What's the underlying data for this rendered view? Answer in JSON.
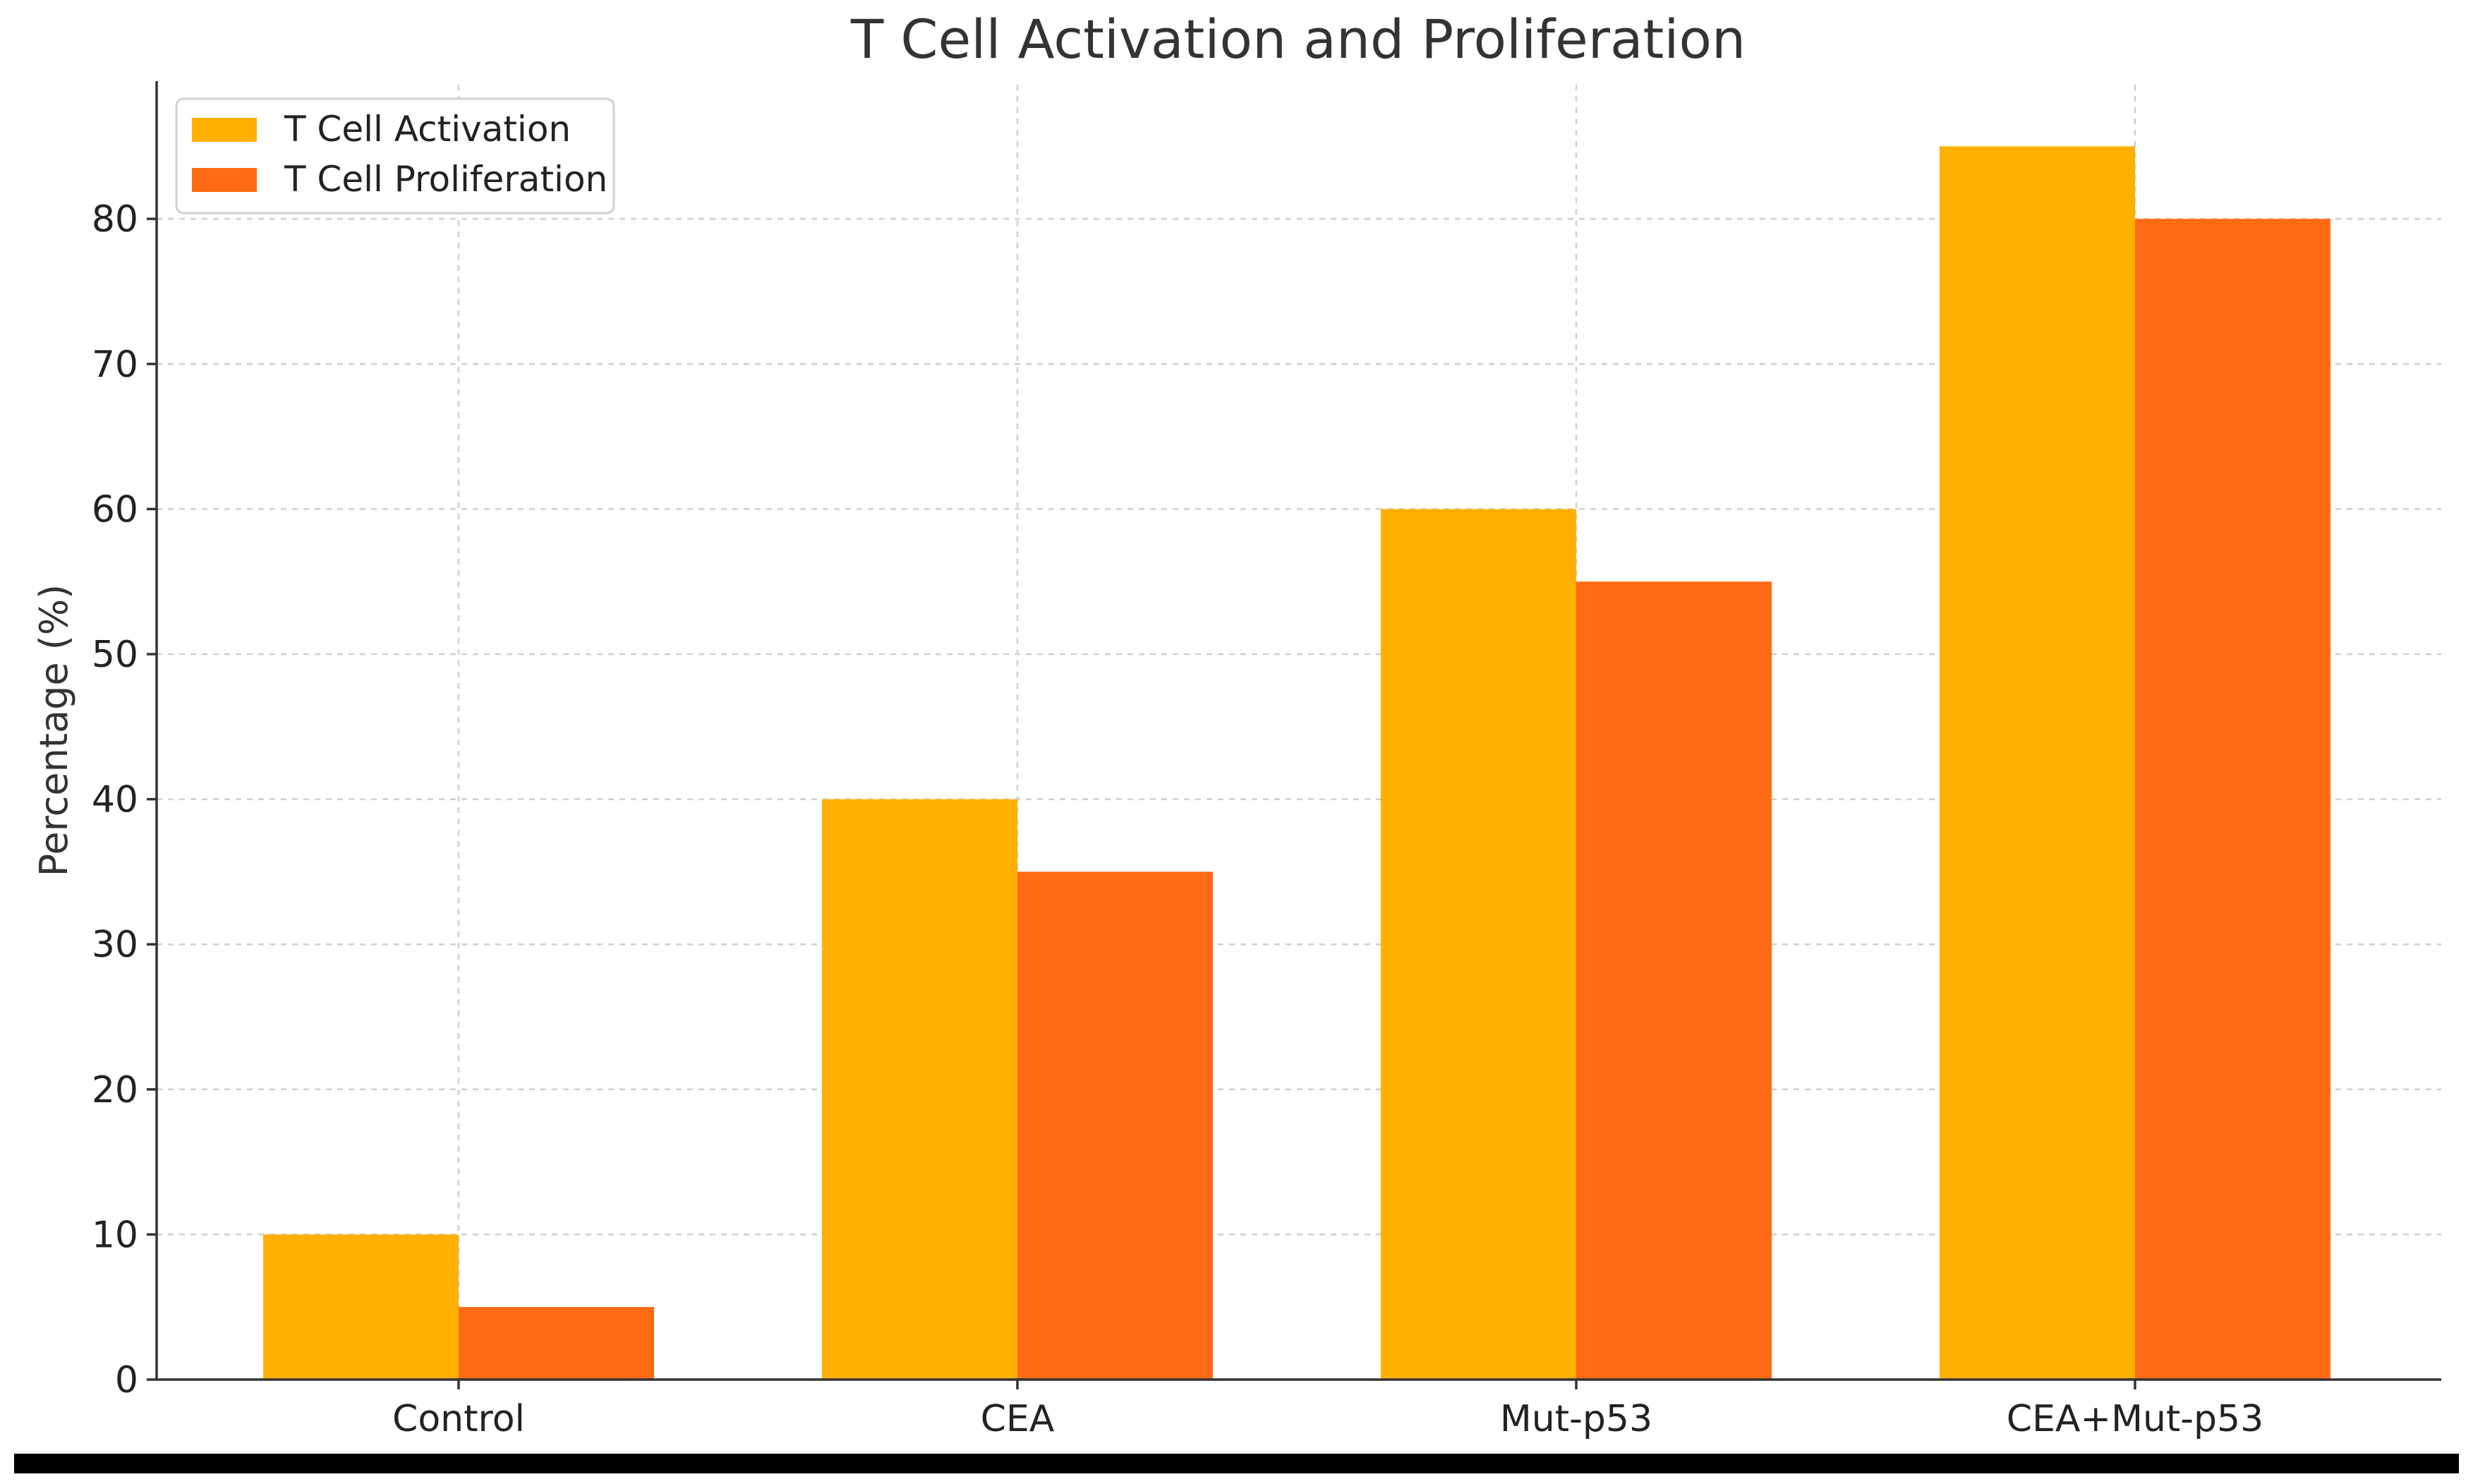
{
  "chart_data": {
    "type": "bar",
    "title": "T Cell Activation and Proliferation",
    "xlabel": "",
    "ylabel": "Percentage (%)",
    "categories": [
      "Control",
      "CEA",
      "Mut-p53",
      "CEA+Mut-p53"
    ],
    "series": [
      {
        "name": "T Cell Activation",
        "values": [
          10,
          40,
          60,
          85
        ],
        "color": "#FFB000"
      },
      {
        "name": "T Cell Proliferation",
        "values": [
          5,
          35,
          55,
          80
        ],
        "color": "#FF6A13"
      }
    ],
    "ylim": [
      0,
      89.25
    ],
    "yticks": [
      0,
      10,
      20,
      30,
      40,
      50,
      60,
      70,
      80
    ],
    "grid": true,
    "legend_position": "top-left"
  }
}
